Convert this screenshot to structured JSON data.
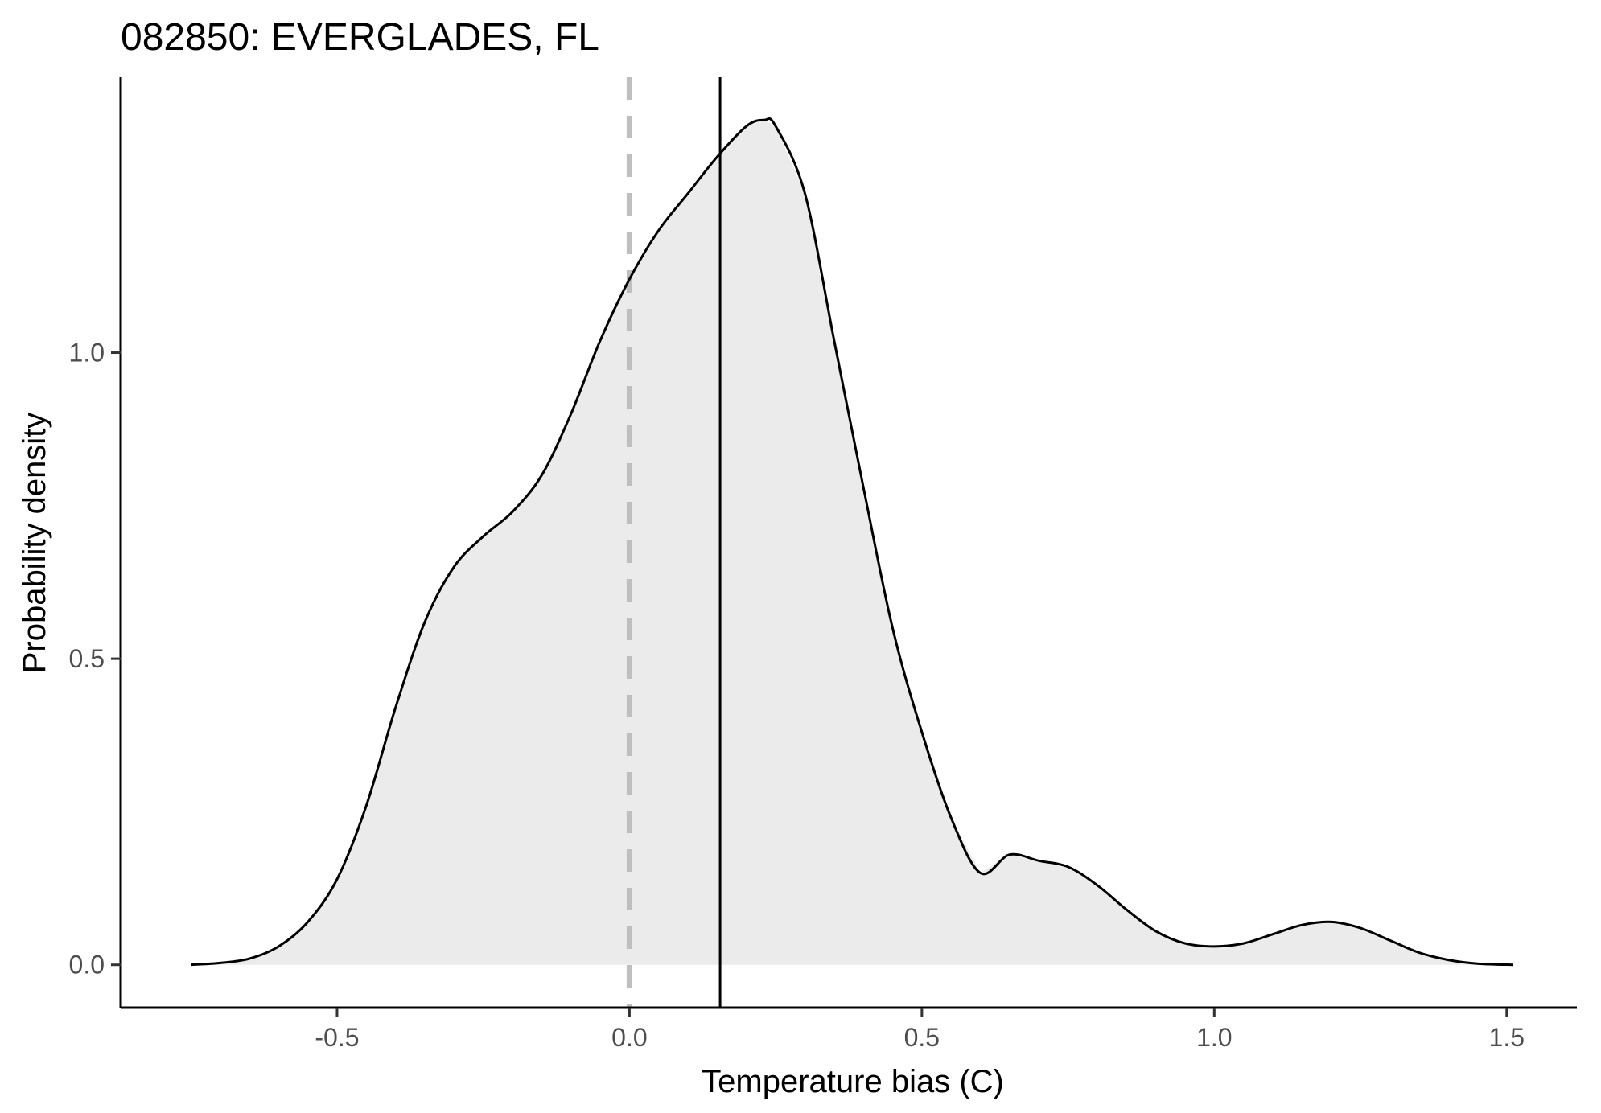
{
  "chart_data": {
    "type": "area",
    "title": "082850: EVERGLADES, FL",
    "xlabel": "Temperature bias (C)",
    "ylabel": "Probability density",
    "xlim": [
      -0.87,
      1.62
    ],
    "ylim": [
      -0.07,
      1.45
    ],
    "x_ticks": [
      -0.5,
      0.0,
      0.5,
      1.0,
      1.5
    ],
    "x_tick_labels": [
      "-0.5",
      "0.0",
      "0.5",
      "1.0",
      "1.5"
    ],
    "y_ticks": [
      0.0,
      0.5,
      1.0
    ],
    "y_tick_labels": [
      "0.0",
      "0.5",
      "1.0"
    ],
    "grid": false,
    "legend": "none",
    "fill_color": "#ebebeb",
    "line_color": "#000000",
    "reference_lines": [
      {
        "x": 0.0,
        "style": "dashed",
        "color": "#bfbfbf"
      },
      {
        "x": 0.155,
        "style": "solid",
        "color": "#000000"
      }
    ],
    "series": [
      {
        "x": [
          -0.75,
          -0.7,
          -0.65,
          -0.6,
          -0.55,
          -0.5,
          -0.45,
          -0.4,
          -0.35,
          -0.3,
          -0.25,
          -0.2,
          -0.15,
          -0.1,
          -0.05,
          0.0,
          0.05,
          0.1,
          0.15,
          0.2,
          0.23,
          0.25,
          0.3,
          0.35,
          0.4,
          0.45,
          0.5,
          0.55,
          0.6,
          0.65,
          0.7,
          0.75,
          0.8,
          0.85,
          0.9,
          0.95,
          1.0,
          1.05,
          1.1,
          1.15,
          1.2,
          1.25,
          1.3,
          1.35,
          1.4,
          1.45,
          1.51
        ],
        "y": [
          0.0,
          0.003,
          0.01,
          0.03,
          0.07,
          0.14,
          0.26,
          0.42,
          0.56,
          0.65,
          0.7,
          0.74,
          0.8,
          0.9,
          1.02,
          1.12,
          1.2,
          1.26,
          1.32,
          1.37,
          1.38,
          1.37,
          1.26,
          1.02,
          0.78,
          0.55,
          0.38,
          0.24,
          0.15,
          0.18,
          0.17,
          0.16,
          0.13,
          0.09,
          0.055,
          0.035,
          0.03,
          0.035,
          0.05,
          0.065,
          0.07,
          0.06,
          0.04,
          0.02,
          0.008,
          0.002,
          0.0
        ]
      }
    ]
  }
}
